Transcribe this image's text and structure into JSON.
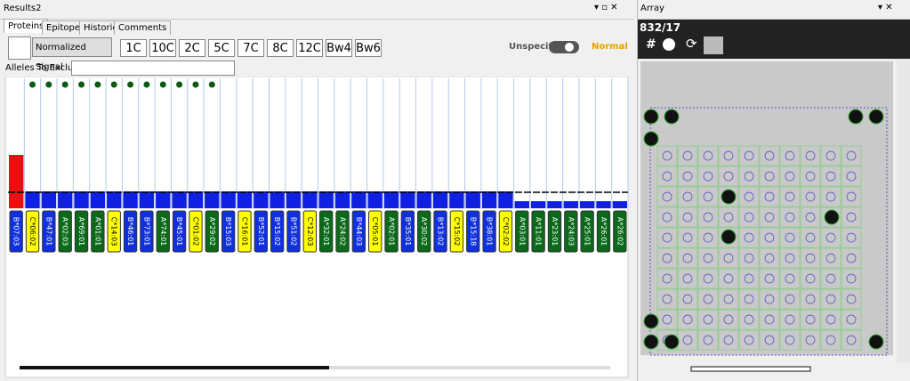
{
  "header": {
    "title": "Results2"
  },
  "tabs": [
    "Proteins",
    "Epitopes",
    "Historie",
    "Comments"
  ],
  "toolbar": {
    "dropdown": "Normalized Signal",
    "buttons": [
      "1C",
      "10C",
      "2C",
      "5C",
      "7C",
      "8C",
      "12C",
      "Bw4",
      "Bw6"
    ],
    "toggle_left": "Unspecific",
    "toggle_right": "Normal"
  },
  "filter": {
    "label": "Alleles To Exclude:"
  },
  "chart": {
    "type": "bar",
    "categories": [
      "B*07:03",
      "C*06:02",
      "B*47:01",
      "A*02:03",
      "A*69:01",
      "A*01:01",
      "C*14:03",
      "B*46:01",
      "B*73:01",
      "A*74:01",
      "B*45:01",
      "C*01:02",
      "A*29:02",
      "B*15:03",
      "C*16:01",
      "B*52:01",
      "B*15:02",
      "B*51:02",
      "C*12:03",
      "A*32:01",
      "A*24:02",
      "B*44:03",
      "C*05:01",
      "A*02:01",
      "B*35:01",
      "A*30:02",
      "B*13:02",
      "C*15:02",
      "B*15:18",
      "B*38:01",
      "C*02:02",
      "A*03:01",
      "A*11:01",
      "A*23:01",
      "A*24:03",
      "A*25:01",
      "A*26:01",
      "A*26:02"
    ],
    "values": [
      60,
      19,
      19,
      19,
      19,
      19,
      19,
      19,
      19,
      19,
      19,
      19,
      19,
      19,
      19,
      19,
      19,
      19,
      19,
      19,
      19,
      19,
      19,
      19,
      19,
      19,
      19,
      19,
      19,
      19,
      19,
      8,
      8,
      8,
      8,
      8,
      8,
      8
    ],
    "bar_colors": [
      "#e81010",
      "#1020e0",
      "#1020e0",
      "#1020e0",
      "#1020e0",
      "#1020e0",
      "#1020e0",
      "#1020e0",
      "#1020e0",
      "#1020e0",
      "#1020e0",
      "#1020e0",
      "#1020e0",
      "#1020e0",
      "#1020e0",
      "#1020e0",
      "#1020e0",
      "#1020e0",
      "#1020e0",
      "#1020e0",
      "#1020e0",
      "#1020e0",
      "#1020e0",
      "#1020e0",
      "#1020e0",
      "#1020e0",
      "#1020e0",
      "#1020e0",
      "#1020e0",
      "#1020e0",
      "#1020e0",
      "#1020e0",
      "#1020e0",
      "#1020e0",
      "#1020e0",
      "#1020e0",
      "#1020e0",
      "#1020e0"
    ],
    "label_colors": [
      "#1030e0",
      "#ffff00",
      "#1030e0",
      "#0a6a1a",
      "#0a6a1a",
      "#0a6a1a",
      "#ffff00",
      "#1030e0",
      "#1030e0",
      "#0a6a1a",
      "#1030e0",
      "#ffff00",
      "#0a6a1a",
      "#1030e0",
      "#ffff00",
      "#1030e0",
      "#1030e0",
      "#1030e0",
      "#ffff00",
      "#0a6a1a",
      "#0a6a1a",
      "#1030e0",
      "#ffff00",
      "#0a6a1a",
      "#1030e0",
      "#0a6a1a",
      "#1030e0",
      "#ffff00",
      "#1030e0",
      "#1030e0",
      "#ffff00",
      "#0a6a1a",
      "#0a6a1a",
      "#0a6a1a",
      "#0a6a1a",
      "#0a6a1a",
      "#0a6a1a",
      "#0a6a1a"
    ],
    "dots": [
      false,
      true,
      true,
      true,
      true,
      true,
      true,
      true,
      true,
      true,
      true,
      true,
      true,
      false,
      false,
      false,
      false,
      false,
      false,
      false,
      false,
      false,
      false,
      false,
      false,
      false,
      false,
      false,
      false,
      false,
      false,
      false,
      false,
      false,
      false,
      false,
      false,
      false
    ],
    "dot_color": "#0a5a14",
    "threshold": 18,
    "ylim": [
      0,
      60
    ]
  },
  "array_panel": {
    "title": "Array",
    "id": "832/17",
    "hash": "#"
  }
}
